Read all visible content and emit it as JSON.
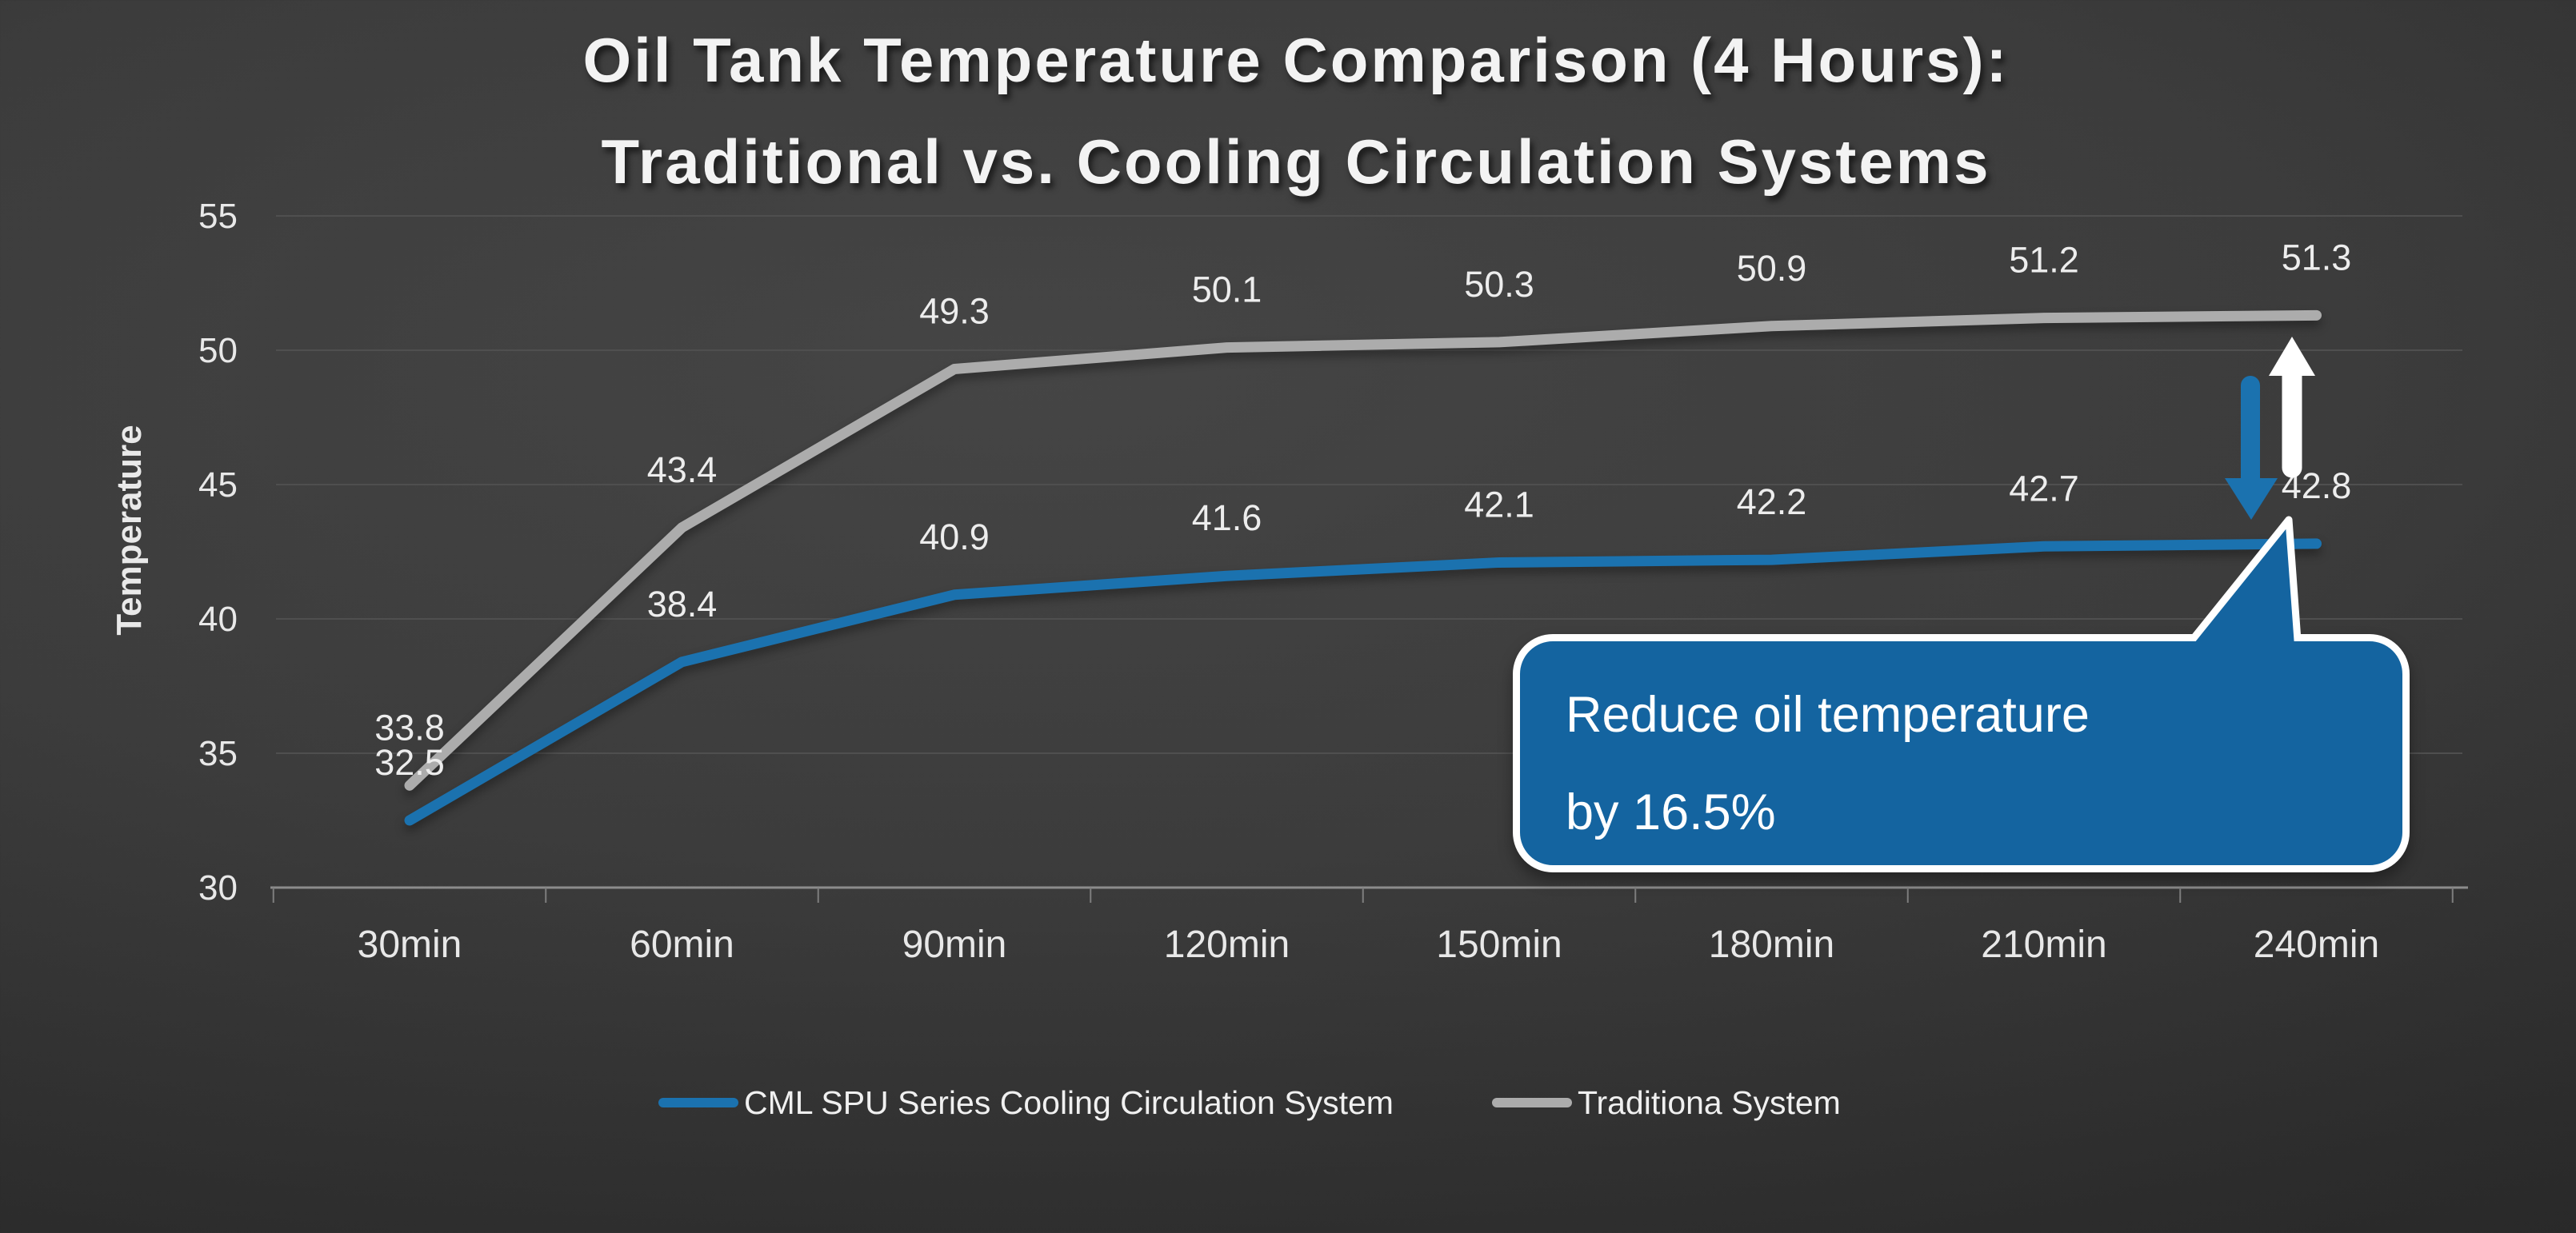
{
  "title": {
    "line1": "Oil Tank Temperature Comparison (4 Hours):",
    "line2": "Traditional vs. Cooling Circulation Systems"
  },
  "chart_data": {
    "type": "line",
    "categories": [
      "30min",
      "60min",
      "90min",
      "120min",
      "150min",
      "180min",
      "210min",
      "240min"
    ],
    "series": [
      {
        "name": "CML SPU Series Cooling Circulation System",
        "color": "#1B72AF",
        "values": [
          32.5,
          38.4,
          40.9,
          41.6,
          42.1,
          42.2,
          42.7,
          42.8
        ]
      },
      {
        "name": "Traditiona System",
        "color": "#ACACAC",
        "values": [
          33.8,
          43.4,
          49.3,
          50.1,
          50.3,
          50.9,
          51.2,
          51.3
        ]
      }
    ],
    "xlabel": "",
    "ylabel": "Temperature",
    "ylim": [
      30,
      55
    ],
    "yticks": [
      30,
      35,
      40,
      45,
      50,
      55
    ],
    "grid": true,
    "data_labels": true,
    "legend_position": "bottom"
  },
  "annotation": {
    "lines": [
      "Reduce oil temperature",
      "by 16.5%"
    ],
    "fill": "#1464A0",
    "border_color": "#FFFFFF",
    "text_color": "#FFFFFF"
  },
  "arrows": {
    "down_color": "#1B72AF",
    "up_color": "#FFFFFF"
  },
  "colors": {
    "background_center": "#454545",
    "background_edge": "#222222",
    "gridline": "#4F4F4F",
    "axis": "#8C8C8C",
    "tick": "#7E7E7E",
    "tick_text": "#E8E8E8",
    "data_label_text": "#EDEDED",
    "title_text": "#F3F3F3",
    "legend_text": "#F0F0F0"
  }
}
